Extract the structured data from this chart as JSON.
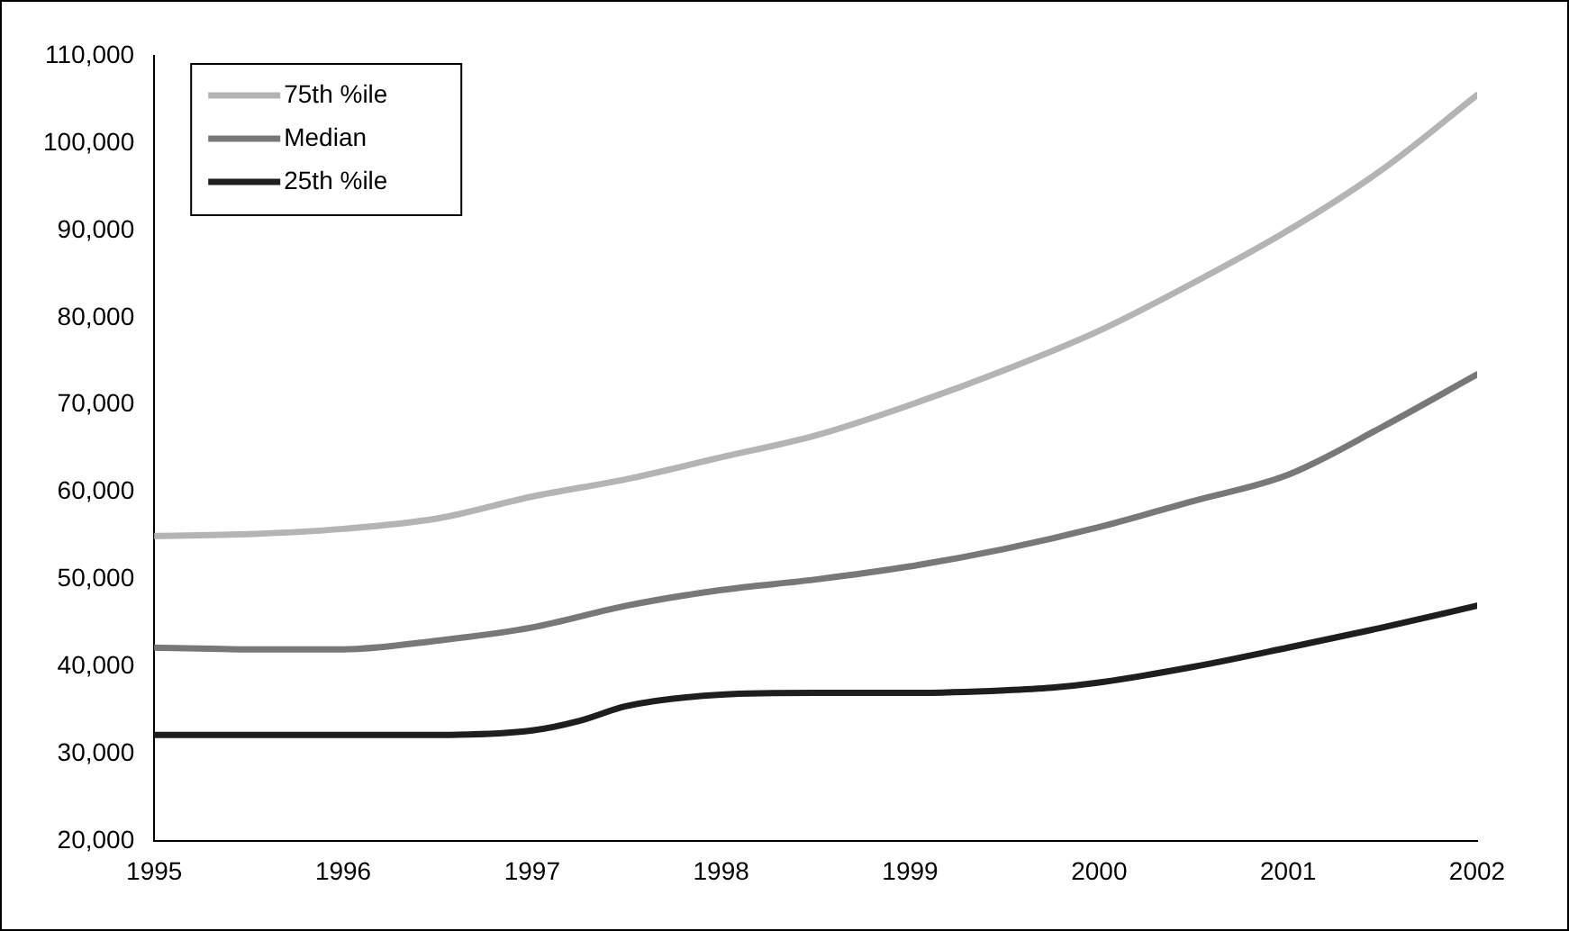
{
  "chart_data": {
    "type": "line",
    "legend": "top left",
    "grid": false,
    "marker": "none",
    "line_style": "solid",
    "xlim": [
      1995,
      2002
    ],
    "xticks": [
      1995,
      1996,
      1997,
      1998,
      1999,
      2000,
      2001,
      2002
    ],
    "ylim": [
      20000,
      110000
    ],
    "yticks": [
      {
        "value": 20000,
        "label": "20,000"
      },
      {
        "value": 30000,
        "label": "30,000"
      },
      {
        "value": 40000,
        "label": "40,000"
      },
      {
        "value": 50000,
        "label": "50,000"
      },
      {
        "value": 60000,
        "label": "60,000"
      },
      {
        "value": 70000,
        "label": "70,000"
      },
      {
        "value": 80000,
        "label": "80,000"
      },
      {
        "value": 90000,
        "label": "90,000"
      },
      {
        "value": 100000,
        "label": "100,000"
      },
      {
        "value": 110000,
        "label": "110,000"
      }
    ],
    "series": [
      {
        "name": "75th %ile",
        "color": "#b4b4b4",
        "x": [
          1995,
          1995.5,
          1996,
          1996.5,
          1997,
          1997.5,
          1998,
          1998.5,
          1999,
          1999.5,
          2000,
          2000.5,
          2001,
          2001.5,
          2002
        ],
        "values": [
          55000,
          55200,
          55800,
          57000,
          59500,
          61500,
          64000,
          66500,
          70000,
          74000,
          78500,
          84000,
          90000,
          97000,
          105500
        ]
      },
      {
        "name": "Median",
        "color": "#787878",
        "x": [
          1995,
          1995.5,
          1996,
          1996.5,
          1997,
          1997.5,
          1998,
          1998.5,
          1999,
          1999.5,
          2000,
          2000.5,
          2001,
          2001.5,
          2002
        ],
        "values": [
          42200,
          42000,
          42000,
          43000,
          44500,
          47000,
          48800,
          50000,
          51500,
          53500,
          56000,
          59000,
          62000,
          67500,
          73500
        ]
      },
      {
        "name": "25th %ile",
        "color": "#1e1e1e",
        "x": [
          1995,
          1996,
          1996.5,
          1997,
          1997.25,
          1997.5,
          1998,
          1998.5,
          1999,
          1999.5,
          1999.75,
          2000,
          2000.5,
          2001,
          2001.5,
          2002
        ],
        "values": [
          32200,
          32200,
          32200,
          32700,
          33800,
          35500,
          36800,
          37000,
          37000,
          37300,
          37600,
          38200,
          40000,
          42200,
          44500,
          47000
        ]
      }
    ]
  }
}
